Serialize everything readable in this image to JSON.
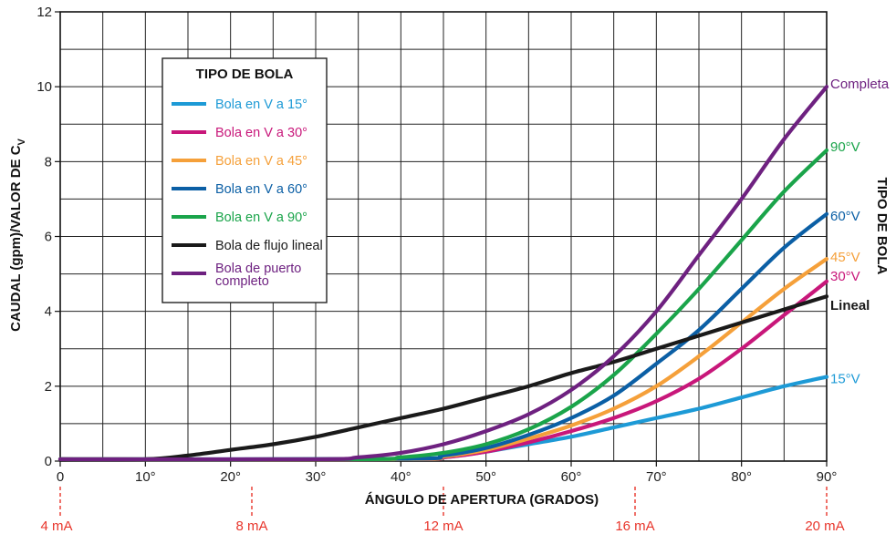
{
  "chart_data": {
    "type": "line",
    "title": "",
    "xlabel": "ÁNGULO DE APERTURA (GRADOS)",
    "ylabel": "CAUDAL (gpm)/VALOR DE C",
    "ylabel_subscript": "V",
    "right_axis_label": "TIPO DE BOLA",
    "xlim": [
      0,
      90
    ],
    "ylim": [
      0,
      12
    ],
    "x_ticks": [
      0,
      10,
      20,
      30,
      40,
      50,
      60,
      70,
      80,
      90
    ],
    "x_tick_labels": [
      "0",
      "10°",
      "20°",
      "30°",
      "40°",
      "50°",
      "60°",
      "70°",
      "80°",
      "90°"
    ],
    "y_ticks": [
      0,
      2,
      4,
      6,
      8,
      10,
      12
    ],
    "y_tick_labels": [
      "0",
      "2",
      "4",
      "6",
      "8",
      "10",
      "12"
    ],
    "grid": true,
    "grid_step": {
      "x": 5,
      "y": 1
    },
    "secondary_x": {
      "labels": [
        "4 mA",
        "8 mA",
        "12 mA",
        "16 mA",
        "20 mA"
      ],
      "positions_deg": [
        0,
        22.5,
        45,
        67.5,
        90
      ],
      "color": "#e8352b"
    },
    "legend": {
      "title": "TIPO DE BOLA",
      "placement": "upper-left",
      "entries": [
        {
          "label": "Bola en V a 15°",
          "color": "#1d9ad6"
        },
        {
          "label": "Bola en V a 30°",
          "color": "#c8177a"
        },
        {
          "label": "Bola en V a 45°",
          "color": "#f5a03a"
        },
        {
          "label": "Bola en V a 60°",
          "color": "#0b5fa5"
        },
        {
          "label": "Bola en V a 90°",
          "color": "#1aa44a"
        },
        {
          "label": "Bola de flujo lineal",
          "color": "#1a1a1a"
        },
        {
          "label": "Bola de puerto",
          "label2": "completo",
          "color": "#6e2180"
        }
      ]
    },
    "series": [
      {
        "name": "Bola en V a 15°",
        "end_label": "15°V",
        "color": "#1d9ad6",
        "x": [
          0,
          40,
          45,
          50,
          55,
          60,
          65,
          70,
          75,
          80,
          85,
          90
        ],
        "y": [
          0.05,
          0.05,
          0.1,
          0.25,
          0.45,
          0.65,
          0.9,
          1.15,
          1.4,
          1.7,
          2.0,
          2.25
        ]
      },
      {
        "name": "Bola en V a 30°",
        "end_label": "30°V",
        "color": "#c8177a",
        "x": [
          0,
          40,
          45,
          50,
          55,
          60,
          65,
          70,
          75,
          80,
          85,
          90
        ],
        "y": [
          0.05,
          0.05,
          0.1,
          0.25,
          0.5,
          0.8,
          1.15,
          1.6,
          2.2,
          3.0,
          3.9,
          4.8
        ]
      },
      {
        "name": "Bola en V a 45°",
        "end_label": "45°V",
        "color": "#f5a03a",
        "x": [
          0,
          40,
          45,
          50,
          55,
          60,
          65,
          70,
          75,
          80,
          85,
          90
        ],
        "y": [
          0.05,
          0.05,
          0.12,
          0.3,
          0.6,
          0.95,
          1.4,
          2.0,
          2.8,
          3.7,
          4.6,
          5.4
        ]
      },
      {
        "name": "Bola en V a 60°",
        "end_label": "60°V",
        "color": "#0b5fa5",
        "x": [
          0,
          40,
          45,
          50,
          55,
          60,
          65,
          70,
          75,
          80,
          85,
          90
        ],
        "y": [
          0.05,
          0.06,
          0.15,
          0.35,
          0.7,
          1.15,
          1.75,
          2.6,
          3.5,
          4.6,
          5.7,
          6.6
        ]
      },
      {
        "name": "Bola en V a 90°",
        "end_label": "90°V",
        "color": "#1aa44a",
        "x": [
          0,
          35,
          40,
          45,
          50,
          55,
          60,
          65,
          70,
          75,
          80,
          85,
          90
        ],
        "y": [
          0.05,
          0.05,
          0.1,
          0.22,
          0.45,
          0.85,
          1.45,
          2.3,
          3.4,
          4.6,
          5.9,
          7.2,
          8.3
        ]
      },
      {
        "name": "Bola de flujo lineal",
        "end_label": "Lineal",
        "color": "#1a1a1a",
        "x": [
          0,
          10,
          15,
          20,
          25,
          30,
          35,
          40,
          45,
          50,
          55,
          60,
          65,
          70,
          75,
          80,
          85,
          90
        ],
        "y": [
          0.05,
          0.05,
          0.15,
          0.3,
          0.45,
          0.65,
          0.9,
          1.15,
          1.4,
          1.7,
          2.0,
          2.35,
          2.65,
          3.0,
          3.35,
          3.7,
          4.05,
          4.4
        ]
      },
      {
        "name": "Bola de puerto completo",
        "end_label": "Completa",
        "color": "#6e2180",
        "x": [
          0,
          30,
          35,
          40,
          45,
          50,
          55,
          60,
          65,
          70,
          75,
          80,
          85,
          90
        ],
        "y": [
          0.05,
          0.05,
          0.1,
          0.22,
          0.45,
          0.8,
          1.25,
          1.9,
          2.8,
          4.0,
          5.5,
          7.0,
          8.6,
          10.0
        ]
      }
    ]
  }
}
